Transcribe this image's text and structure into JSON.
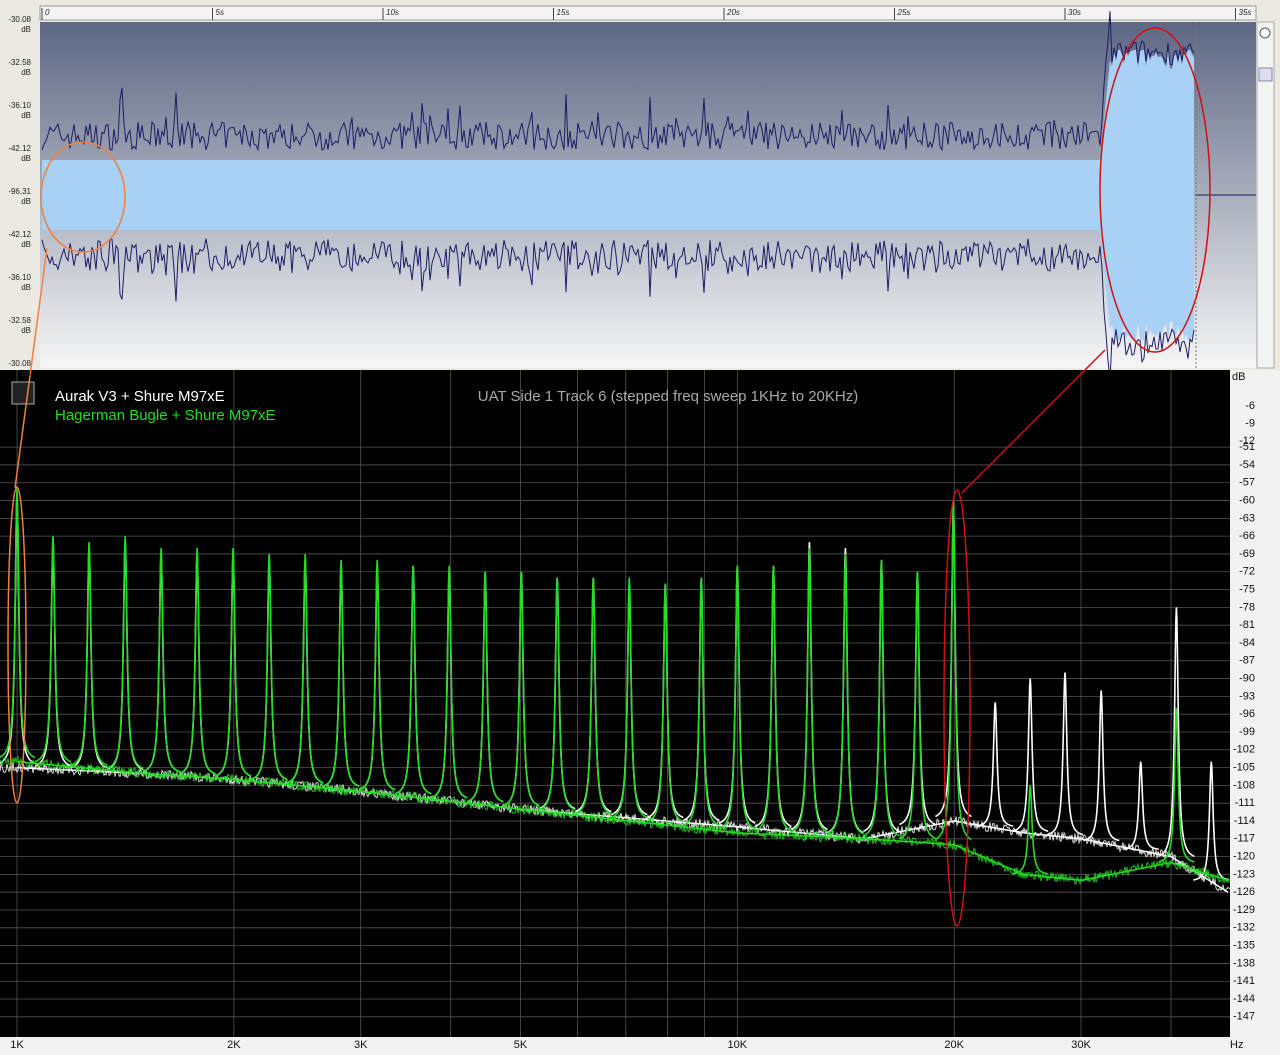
{
  "waveform": {
    "time_ticks": [
      {
        "value": 0,
        "label": "0"
      },
      {
        "value": 5,
        "label": "5s"
      },
      {
        "value": 10,
        "label": "10s"
      },
      {
        "value": 15,
        "label": "15s"
      },
      {
        "value": 20,
        "label": "20s"
      },
      {
        "value": 25,
        "label": "25s"
      },
      {
        "value": 30,
        "label": "30s"
      },
      {
        "value": 35,
        "label": "35s"
      }
    ],
    "db_labels": [
      "-30.08",
      "-32.58",
      "-36.10",
      "-42.12",
      "-96.31",
      "-42.12",
      "-36.10",
      "-32.58",
      "-30.08"
    ],
    "db_unit": "dB"
  },
  "chart_data": {
    "type": "line",
    "title": "UAT Side 1 Track 6 (stepped freq sweep 1KHz to 20KHz)",
    "x_scale": "log",
    "xlim": [
      947,
      48300
    ],
    "xticks": [
      {
        "value": 1000,
        "label": "1K"
      },
      {
        "value": 2000,
        "label": "2K"
      },
      {
        "value": 3000,
        "label": "3K"
      },
      {
        "value": 5000,
        "label": "5K"
      },
      {
        "value": 10000,
        "label": "10K"
      },
      {
        "value": 20000,
        "label": "20K"
      },
      {
        "value": 30000,
        "label": "30K"
      }
    ],
    "minor_xticks": [
      4000,
      6000,
      7000,
      8000,
      9000,
      40000
    ],
    "x_unit": "Hz",
    "y_unit": "dB",
    "ylim": [
      -150.4,
      -38
    ],
    "yticks": [
      -51,
      -54,
      -57,
      -60,
      -63,
      -66,
      -69,
      -72,
      -75,
      -78,
      -81,
      -84,
      -87,
      -90,
      -93,
      -96,
      -99,
      -102,
      -105,
      -108,
      -111,
      -114,
      -117,
      -120,
      -123,
      -126,
      -129,
      -132,
      -135,
      -138,
      -141,
      -144,
      -147
    ],
    "stray_yticks": [
      -6,
      -9,
      -12
    ],
    "grid": true,
    "series": [
      {
        "name": "Aurak V3 + Shure M97xE",
        "color": "#ffffff",
        "peaks": {
          "x": [
            1000,
            1122,
            1259,
            1413,
            1585,
            1778,
            1995,
            2239,
            2512,
            2818,
            3162,
            3548,
            3981,
            4467,
            5012,
            5623,
            6310,
            7079,
            7943,
            8913,
            10000,
            11220,
            12589,
            14125,
            15849,
            17783,
            19953,
            22800,
            25500,
            28500,
            32000,
            36300,
            40700,
            45500
          ],
          "values": [
            -59,
            -67,
            -68,
            -67,
            -69,
            -69,
            -69,
            -70,
            -70,
            -71,
            -71,
            -71,
            -72,
            -72,
            -72,
            -73,
            -73,
            -74,
            -74,
            -73,
            -71,
            -71,
            -67,
            -68,
            -70,
            -72,
            -61,
            -94,
            -90,
            -89,
            -92,
            -104,
            -78,
            -104
          ]
        },
        "floor": {
          "x": [
            1000,
            1500,
            2000,
            3000,
            5000,
            10000,
            15000,
            20000,
            25000,
            30000,
            40000,
            48000
          ],
          "values": [
            -105,
            -106,
            -107,
            -109,
            -112,
            -115,
            -117,
            -114,
            -116,
            -117,
            -120,
            -126
          ]
        }
      },
      {
        "name": "Hagerman Bugle + Shure M97xE",
        "color": "#22dd22",
        "peaks": {
          "x": [
            1000,
            1122,
            1259,
            1413,
            1585,
            1778,
            1995,
            2239,
            2512,
            2818,
            3162,
            3548,
            3981,
            4467,
            5012,
            5623,
            6310,
            7079,
            7943,
            8913,
            10000,
            11220,
            12589,
            14125,
            15849,
            17783,
            19953,
            25500,
            40700
          ],
          "values": [
            -58,
            -66,
            -67,
            -66,
            -68,
            -68,
            -68,
            -69,
            -69,
            -70,
            -70,
            -71,
            -71,
            -72,
            -72,
            -73,
            -73,
            -73,
            -74,
            -73,
            -71,
            -71,
            -68,
            -69,
            -70,
            -72,
            -60,
            -108,
            -95
          ]
        },
        "floor": {
          "x": [
            1000,
            1500,
            2000,
            3000,
            5000,
            10000,
            15000,
            20000,
            25000,
            30000,
            40000,
            48000
          ],
          "values": [
            -104,
            -106,
            -107,
            -109,
            -112,
            -116,
            -117,
            -118,
            -123,
            -124,
            -121,
            -124
          ]
        }
      }
    ]
  }
}
